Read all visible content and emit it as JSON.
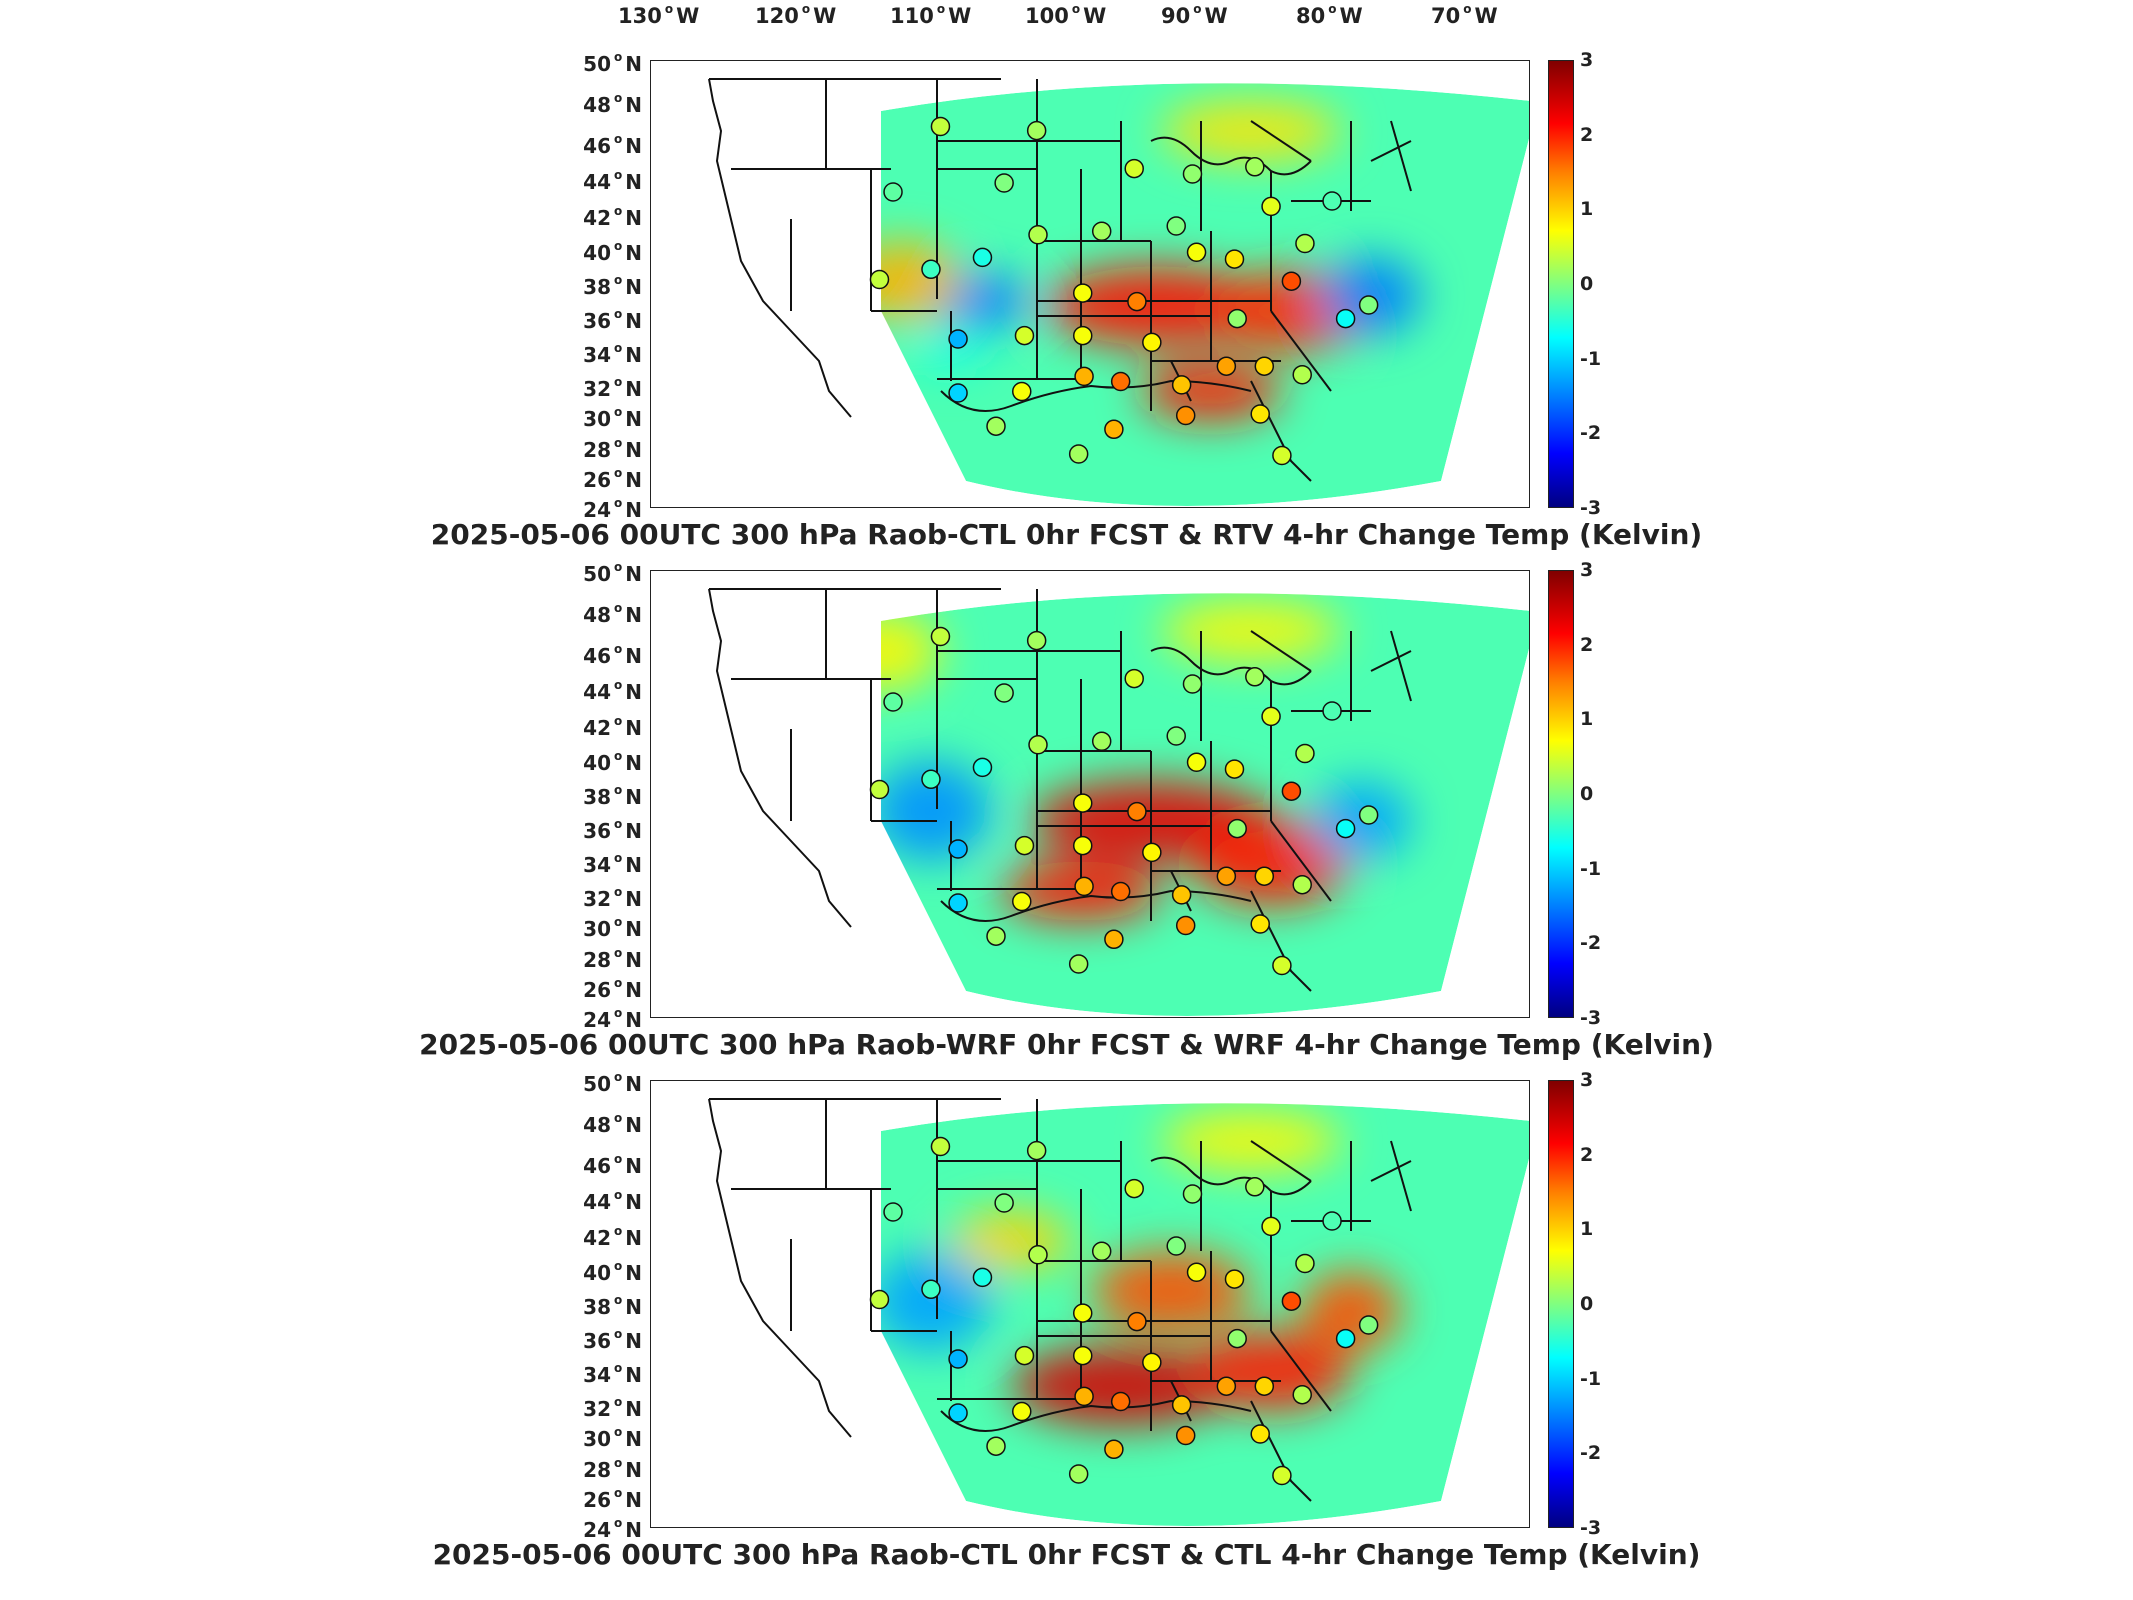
{
  "lon_labels": [
    {
      "deg": "130",
      "hem": "W"
    },
    {
      "deg": "120",
      "hem": "W"
    },
    {
      "deg": "110",
      "hem": "W"
    },
    {
      "deg": "100",
      "hem": "W"
    },
    {
      "deg": "90",
      "hem": "W"
    },
    {
      "deg": "80",
      "hem": "W"
    },
    {
      "deg": "70",
      "hem": "W"
    }
  ],
  "lat_labels": [
    {
      "deg": "50",
      "hem": "N"
    },
    {
      "deg": "48",
      "hem": "N"
    },
    {
      "deg": "46",
      "hem": "N"
    },
    {
      "deg": "44",
      "hem": "N"
    },
    {
      "deg": "42",
      "hem": "N"
    },
    {
      "deg": "40",
      "hem": "N"
    },
    {
      "deg": "38",
      "hem": "N"
    },
    {
      "deg": "36",
      "hem": "N"
    },
    {
      "deg": "34",
      "hem": "N"
    },
    {
      "deg": "32",
      "hem": "N"
    },
    {
      "deg": "30",
      "hem": "N"
    },
    {
      "deg": "28",
      "hem": "N"
    },
    {
      "deg": "26",
      "hem": "N"
    },
    {
      "deg": "24",
      "hem": "N"
    }
  ],
  "colorbar": {
    "ticks": [
      "3",
      "2",
      "1",
      "0",
      "-1",
      "-2",
      "-3"
    ],
    "min": -3,
    "max": 3,
    "colormap": "jet"
  },
  "panels": [
    {
      "title": "2025-05-06 00UTC 300 hPa Raob-CTL 0hr FCST & RTV 4-hr Change Temp (Kelvin)"
    },
    {
      "title": "2025-05-06 00UTC 300 hPa Raob-WRF 0hr FCST & WRF 4-hr Change Temp (Kelvin)"
    },
    {
      "title": "2025-05-06 00UTC 300 hPa Raob-CTL 0hr FCST & CTL 4-hr Change Temp (Kelvin)"
    }
  ],
  "chart_data": [
    {
      "type": "heatmap",
      "title": "2025-05-06 00UTC 300 hPa Raob-CTL 0hr FCST & RTV 4-hr Change Temp (Kelvin)",
      "xlim": [
        -132,
        -64
      ],
      "ylim": [
        24,
        50
      ],
      "clim": [
        -3,
        3
      ]
    },
    {
      "type": "heatmap",
      "title": "2025-05-06 00UTC 300 hPa Raob-WRF 0hr FCST & WRF 4-hr Change Temp (Kelvin)",
      "xlim": [
        -132,
        -64
      ],
      "ylim": [
        24,
        50
      ],
      "clim": [
        -3,
        3
      ]
    },
    {
      "type": "heatmap",
      "title": "2025-05-06 00UTC 300 hPa Raob-CTL 0hr FCST & CTL 4-hr Change Temp (Kelvin)",
      "xlim": [
        -132,
        -64
      ],
      "ylim": [
        24,
        50
      ],
      "clim": [
        -3,
        3
      ]
    }
  ],
  "raob_stations": [
    {
      "lon": -107.9,
      "lat": 47.0,
      "value": 0.4
    },
    {
      "lon": -100.8,
      "lat": 46.8,
      "value": 0.2
    },
    {
      "lon": -103.2,
      "lat": 44.0,
      "value": 0.0
    },
    {
      "lon": -111.4,
      "lat": 43.5,
      "value": -0.2
    },
    {
      "lon": -93.6,
      "lat": 44.8,
      "value": 0.5
    },
    {
      "lon": -89.3,
      "lat": 44.5,
      "value": 0.1
    },
    {
      "lon": -84.7,
      "lat": 44.9,
      "value": 0.2
    },
    {
      "lon": -83.5,
      "lat": 42.7,
      "value": 0.6
    },
    {
      "lon": -79.0,
      "lat": 43.0,
      "value": -0.3
    },
    {
      "lon": -86.2,
      "lat": 39.7,
      "value": 0.9
    },
    {
      "lon": -89.0,
      "lat": 40.1,
      "value": 0.7
    },
    {
      "lon": -90.5,
      "lat": 41.6,
      "value": 0.0
    },
    {
      "lon": -96.0,
      "lat": 41.3,
      "value": 0.2
    },
    {
      "lon": -100.7,
      "lat": 41.1,
      "value": 0.3
    },
    {
      "lon": -104.8,
      "lat": 39.8,
      "value": -0.6
    },
    {
      "lon": -108.6,
      "lat": 39.1,
      "value": -0.4
    },
    {
      "lon": -112.4,
      "lat": 38.5,
      "value": 0.4
    },
    {
      "lon": -97.4,
      "lat": 37.7,
      "value": 0.7
    },
    {
      "lon": -93.4,
      "lat": 37.2,
      "value": 1.5
    },
    {
      "lon": -86.0,
      "lat": 36.2,
      "value": 0.1
    },
    {
      "lon": -82.0,
      "lat": 38.4,
      "value": 1.8
    },
    {
      "lon": -78.0,
      "lat": 36.2,
      "value": -0.7
    },
    {
      "lon": -76.3,
      "lat": 37.0,
      "value": 0.0
    },
    {
      "lon": -81.0,
      "lat": 40.6,
      "value": 0.3
    },
    {
      "lon": -106.6,
      "lat": 35.0,
      "value": -1.2
    },
    {
      "lon": -101.7,
      "lat": 35.2,
      "value": 0.5
    },
    {
      "lon": -97.4,
      "lat": 35.2,
      "value": 0.7
    },
    {
      "lon": -92.3,
      "lat": 34.8,
      "value": 0.8
    },
    {
      "lon": -86.8,
      "lat": 33.4,
      "value": 1.3
    },
    {
      "lon": -84.0,
      "lat": 33.4,
      "value": 1.0
    },
    {
      "lon": -81.2,
      "lat": 32.9,
      "value": 0.3
    },
    {
      "lon": -90.1,
      "lat": 32.3,
      "value": 1.1
    },
    {
      "lon": -94.6,
      "lat": 32.5,
      "value": 1.6
    },
    {
      "lon": -97.3,
      "lat": 32.8,
      "value": 1.2
    },
    {
      "lon": -101.9,
      "lat": 31.9,
      "value": 0.7
    },
    {
      "lon": -106.6,
      "lat": 31.8,
      "value": -1.0
    },
    {
      "lon": -103.8,
      "lat": 29.6,
      "value": 0.2
    },
    {
      "lon": -97.7,
      "lat": 27.8,
      "value": 0.2
    },
    {
      "lon": -95.1,
      "lat": 29.4,
      "value": 1.2
    },
    {
      "lon": -89.8,
      "lat": 30.3,
      "value": 1.4
    },
    {
      "lon": -84.3,
      "lat": 30.4,
      "value": 0.9
    },
    {
      "lon": -82.7,
      "lat": 27.7,
      "value": 0.5
    }
  ]
}
